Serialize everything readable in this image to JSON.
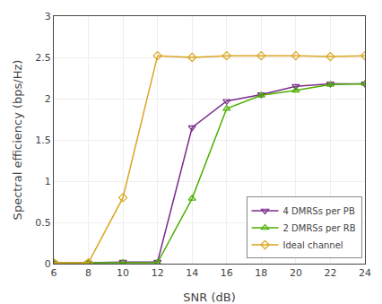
{
  "chart_data": {
    "type": "line",
    "x": [
      6,
      8,
      10,
      12,
      14,
      16,
      18,
      20,
      22,
      24
    ],
    "series": [
      {
        "name": "4 DMRSs per PB",
        "color": "#7B2D8B",
        "marker": "triangle-down",
        "values": [
          0.01,
          0.01,
          0.02,
          0.02,
          1.65,
          1.97,
          2.05,
          2.15,
          2.18,
          2.18
        ]
      },
      {
        "name": "2 DMRSs per RB",
        "color": "#4DAF00",
        "marker": "triangle-up",
        "values": [
          0.01,
          0.01,
          0.01,
          0.01,
          0.79,
          1.88,
          2.04,
          2.1,
          2.17,
          2.18
        ]
      },
      {
        "name": "Ideal channel",
        "color": "#DAA520",
        "marker": "diamond",
        "values": [
          0.01,
          0.01,
          0.8,
          2.52,
          2.5,
          2.52,
          2.52,
          2.52,
          2.51,
          2.52
        ]
      }
    ],
    "xlabel": "SNR (dB)",
    "ylabel": "Spectral efficiency (bps/Hz)",
    "xlim": [
      6,
      24
    ],
    "ylim": [
      0,
      3
    ],
    "xticks": [
      6,
      8,
      10,
      12,
      14,
      16,
      18,
      20,
      22,
      24
    ],
    "yticks": [
      0,
      0.5,
      1,
      1.5,
      2,
      2.5,
      3
    ],
    "grid": true,
    "legend": "lower right"
  }
}
